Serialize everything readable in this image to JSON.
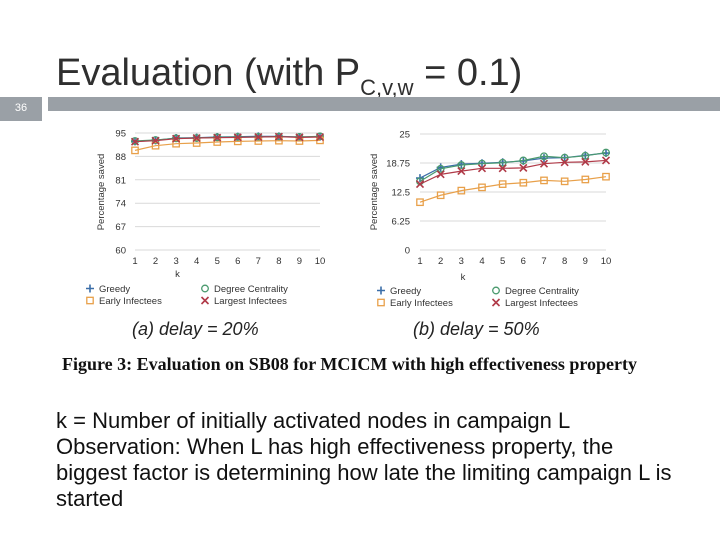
{
  "slide": {
    "title_main": "Evaluation (with P",
    "title_sub": "C,v,w",
    "title_tail": " = 0.1)",
    "number": "36"
  },
  "caption": {
    "label": "Figure 3:",
    "text": "Evaluation on SB08 for MCICM with high effectiveness property"
  },
  "body": {
    "line1": "k = Number of initially activated nodes in campaign L",
    "line2": "Observation: When L has high effectiveness property, the biggest factor is determining how late the limiting campaign L is started"
  },
  "chart_data": [
    {
      "type": "line",
      "subtitle": "(a) delay = 20%",
      "xlabel": "k",
      "ylabel": "Percentage saved",
      "x": [
        1,
        2,
        3,
        4,
        5,
        6,
        7,
        8,
        9,
        10
      ],
      "xticks": [
        "1",
        "2",
        "3",
        "4",
        "5",
        "6",
        "7",
        "8",
        "9",
        "10"
      ],
      "yticks": [
        "60",
        "67",
        "74",
        "81",
        "88",
        "95"
      ],
      "ylim": [
        60,
        95
      ],
      "series": [
        {
          "name": "Greedy",
          "marker": "plus",
          "color": "#3b6ea8",
          "values": [
            92.5,
            92.8,
            93.5,
            93.6,
            93.8,
            93.9,
            94.0,
            94.0,
            93.8,
            93.9
          ]
        },
        {
          "name": "Degree Centrality",
          "marker": "circle",
          "color": "#4a9a6e",
          "values": [
            92.6,
            92.9,
            93.4,
            93.5,
            93.7,
            93.8,
            93.8,
            93.9,
            93.8,
            94.0
          ]
        },
        {
          "name": "Early Infectees",
          "marker": "square",
          "color": "#e8a04a",
          "values": [
            89.8,
            91.2,
            91.8,
            92.0,
            92.3,
            92.5,
            92.6,
            92.7,
            92.6,
            92.8
          ]
        },
        {
          "name": "Largest Infectees",
          "marker": "x",
          "color": "#b03a48",
          "values": [
            92.4,
            92.7,
            93.3,
            93.5,
            93.6,
            93.7,
            93.8,
            93.9,
            93.7,
            93.8
          ]
        }
      ],
      "legend": "bottom"
    },
    {
      "type": "line",
      "subtitle": "(b) delay = 50%",
      "xlabel": "k",
      "ylabel": "Percentage saved",
      "x": [
        1,
        2,
        3,
        4,
        5,
        6,
        7,
        8,
        9,
        10
      ],
      "xticks": [
        "1",
        "2",
        "3",
        "4",
        "5",
        "6",
        "7",
        "8",
        "9",
        "10"
      ],
      "yticks": [
        "0",
        "6.25",
        "12.5",
        "18.75",
        "25"
      ],
      "ylim": [
        0,
        25
      ],
      "series": [
        {
          "name": "Greedy",
          "marker": "plus",
          "color": "#3b6ea8",
          "values": [
            15.5,
            17.8,
            18.5,
            18.7,
            18.9,
            19.2,
            19.8,
            19.9,
            20.4,
            20.9
          ]
        },
        {
          "name": "Degree Centrality",
          "marker": "circle",
          "color": "#4a9a6e",
          "values": [
            14.8,
            17.5,
            18.3,
            18.6,
            18.8,
            19.3,
            20.2,
            19.9,
            20.3,
            21.0
          ]
        },
        {
          "name": "Early Infectees",
          "marker": "square",
          "color": "#e8a04a",
          "values": [
            10.3,
            11.8,
            12.8,
            13.5,
            14.2,
            14.5,
            15.0,
            14.8,
            15.2,
            15.8
          ]
        },
        {
          "name": "Largest Infectees",
          "marker": "x",
          "color": "#b03a48",
          "values": [
            14.2,
            16.3,
            17.0,
            17.6,
            17.6,
            17.7,
            18.6,
            18.9,
            19.0,
            19.3
          ]
        }
      ],
      "legend": "bottom"
    }
  ]
}
